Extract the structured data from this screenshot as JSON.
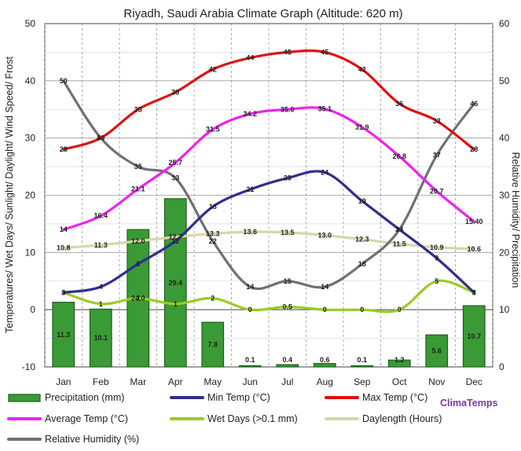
{
  "chart_data": {
    "type": "bar",
    "title": "Riyadh, Saudi Arabia Climate Graph (Altitude: 620 m)",
    "ylabel_left": "Temperatures/ Wet Days/ Sunlight/ Daylight/ Wind Speed/ Frost",
    "ylabel_right": "Relative Humidity/ Precipitation",
    "ylim_left": [
      -10,
      50
    ],
    "ylim_right": [
      0,
      60
    ],
    "left_ticks": [
      "-10",
      "0",
      "10",
      "20",
      "30",
      "40",
      "50"
    ],
    "right_ticks": [
      "0",
      "10",
      "20",
      "30",
      "40",
      "50",
      "60"
    ],
    "categories": [
      "Jan",
      "Feb",
      "Mar",
      "Apr",
      "May",
      "Jun",
      "Jul",
      "Aug",
      "Sep",
      "Oct",
      "Nov",
      "Dec"
    ],
    "brand": "ClimaTemps",
    "grid": true,
    "legend_position": "bottom",
    "series": [
      {
        "name": "Precipitation (mm)",
        "kind": "bar",
        "axis": "right",
        "color": "#3a9a35",
        "values": [
          11.3,
          10.1,
          24.0,
          29.4,
          7.8,
          0.1,
          0.4,
          0.6,
          0.1,
          1.2,
          5.6,
          10.7
        ]
      },
      {
        "name": "Min Temp (°C)",
        "kind": "line",
        "axis": "left",
        "color": "#2e2e8f",
        "values": [
          3,
          4,
          8,
          12,
          18,
          21,
          23,
          24,
          19,
          14,
          9,
          3
        ]
      },
      {
        "name": "Max Temp (°C)",
        "kind": "line",
        "axis": "left",
        "color": "#e01010",
        "values": [
          28,
          30,
          35,
          38,
          42,
          44,
          45,
          45,
          42,
          36,
          33,
          28
        ]
      },
      {
        "name": "Average Temp (°C)",
        "kind": "line",
        "axis": "left",
        "color": "#ee22ee",
        "values": [
          14,
          16.4,
          21.1,
          25.7,
          31.5,
          34.2,
          35.0,
          35.1,
          31.9,
          26.8,
          20.7,
          15.4
        ]
      },
      {
        "name": "Wet Days (>0.1 mm)",
        "kind": "line",
        "axis": "left",
        "color": "#99cc22",
        "values": [
          3,
          1,
          2,
          1,
          2,
          0,
          0.5,
          0,
          0,
          0,
          5,
          3
        ]
      },
      {
        "name": "Daylength (Hours)",
        "kind": "line",
        "axis": "left",
        "color": "#d6d6a8",
        "values": [
          10.8,
          11.3,
          12.0,
          12.7,
          13.3,
          13.6,
          13.5,
          13.0,
          12.3,
          11.5,
          10.9,
          10.6
        ]
      },
      {
        "name": "Relative Humidity (%)",
        "kind": "line",
        "axis": "right",
        "color": "#707070",
        "values": [
          50,
          40,
          35,
          33,
          22,
          14,
          15,
          14,
          18,
          24,
          37,
          46
        ]
      }
    ],
    "labels": {
      "Precipitation (mm)": [
        "11.3",
        "10.1",
        "24.0",
        "29.4",
        "7.8",
        "0.1",
        "0.4",
        "0.6",
        "0.1",
        "1.2",
        "5.6",
        "10.7"
      ],
      "Min Temp (°C)": [
        "3",
        "4",
        "8",
        "12",
        "18",
        "21",
        "23",
        "24",
        "19",
        "14",
        "9",
        "3"
      ],
      "Max Temp (°C)": [
        "28",
        "30",
        "35",
        "38",
        "42",
        "44",
        "45",
        "45",
        "42",
        "36",
        "33",
        "28"
      ],
      "Average Temp (°C)": [
        "14",
        "16.4",
        "21.1",
        "25.7",
        "31.5",
        "34.2",
        "35.0",
        "35.1",
        "31.9",
        "26.8",
        "20.7",
        "15.40"
      ],
      "Wet Days (>0.1 mm)": [
        "3",
        "1",
        "2",
        "1",
        "2",
        "0",
        "0.5",
        "0",
        "0",
        "0",
        "5",
        "3"
      ],
      "Daylength (Hours)": [
        "10.8",
        "11.3",
        "12.0",
        "12.7",
        "13.3",
        "13.6",
        "13.5",
        "13.0",
        "12.3",
        "11.5",
        "10.9",
        "10.6"
      ],
      "Relative Humidity (%)": [
        "50",
        "40",
        "35",
        "33",
        "22",
        "14",
        "15",
        "14",
        "18",
        "24",
        "37",
        "46"
      ]
    }
  }
}
